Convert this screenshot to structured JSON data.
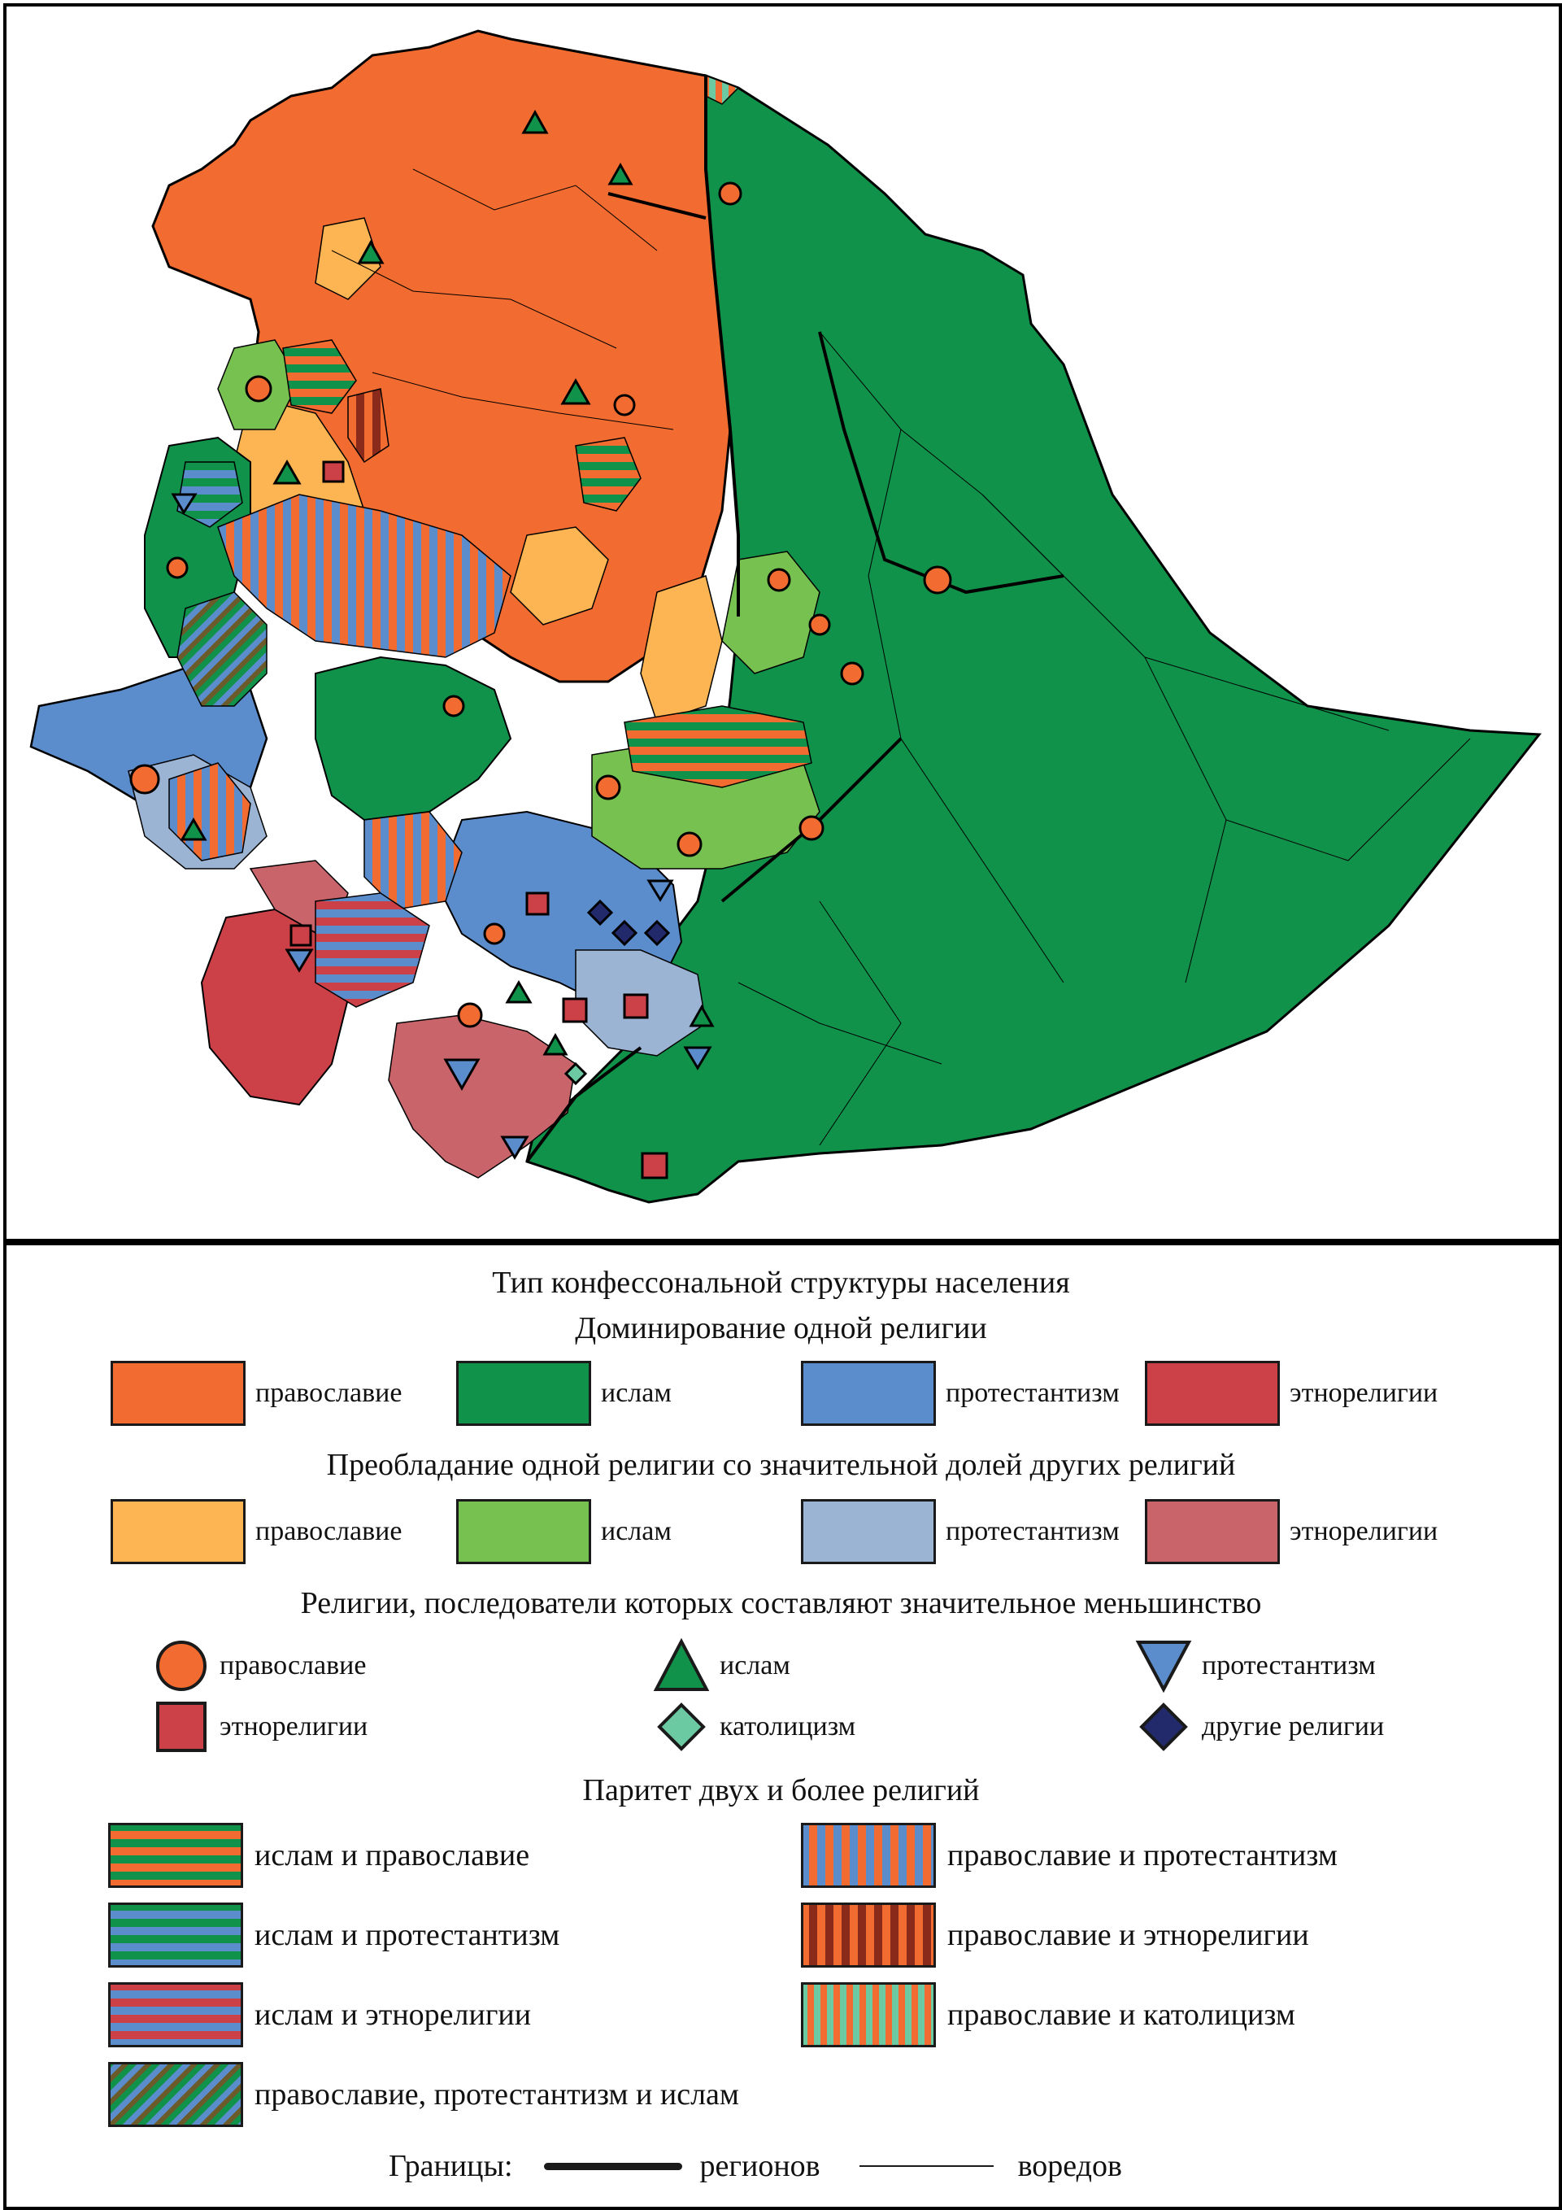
{
  "legend": {
    "title": "Тип конфессональной структуры населения",
    "dominance": {
      "heading": "Доминирование одной религии",
      "items": [
        {
          "label": "православие",
          "color": "#f26b30"
        },
        {
          "label": "ислам",
          "color": "#11924a"
        },
        {
          "label": "протестантизм",
          "color": "#5b8ccc"
        },
        {
          "label": "этнорелигии",
          "color": "#cc4048"
        }
      ]
    },
    "predominance": {
      "heading": "Преобладание одной религии со значительной долей других религий",
      "items": [
        {
          "label": "православие",
          "color": "#fdb452"
        },
        {
          "label": "ислам",
          "color": "#77c150"
        },
        {
          "label": "протестантизм",
          "color": "#9cb4d4"
        },
        {
          "label": "этнорелигии",
          "color": "#c9646a"
        }
      ]
    },
    "minority": {
      "heading": "Религии, последователи которых составляют значительное меньшинство",
      "items": [
        {
          "label": "православие",
          "icon": "orange-circle-icon",
          "color": "#f26b30"
        },
        {
          "label": "ислам",
          "icon": "green-triangle-icon",
          "color": "#11924a"
        },
        {
          "label": "протестантизм",
          "icon": "blue-inverted-triangle-icon",
          "color": "#5b8ccc"
        },
        {
          "label": "этнорелигии",
          "icon": "red-square-icon",
          "color": "#cc4048"
        },
        {
          "label": "католицизм",
          "icon": "teal-diamond-icon",
          "color": "#6ccaa3"
        },
        {
          "label": "другие религии",
          "icon": "navy-diamond-icon",
          "color": "#232a6b"
        }
      ]
    },
    "parity": {
      "heading": "Паритет двух и более религий",
      "items": [
        {
          "label": "ислам и православие",
          "colors": [
            "#11924a",
            "#f26b30"
          ]
        },
        {
          "label": "ислам и протестантизм",
          "colors": [
            "#11924a",
            "#5b8ccc"
          ]
        },
        {
          "label": "ислам и этнорелигии",
          "colors": [
            "#cc4048",
            "#5b8ccc"
          ]
        },
        {
          "label": "православие, протестантизм и ислам",
          "colors": [
            "#11924a",
            "#5b8ccc"
          ]
        },
        {
          "label": "православие и протестантизм",
          "colors": [
            "#5b8ccc",
            "#f26b30"
          ]
        },
        {
          "label": "православие и этнорелигии",
          "colors": [
            "#f26b30",
            "#8a2a1a"
          ]
        },
        {
          "label": "православие и католицизм",
          "colors": [
            "#6ccaa3",
            "#f26b30"
          ]
        }
      ]
    },
    "borders": {
      "heading": "Границы:",
      "regions": "регионов",
      "woredas": "воредов"
    }
  }
}
